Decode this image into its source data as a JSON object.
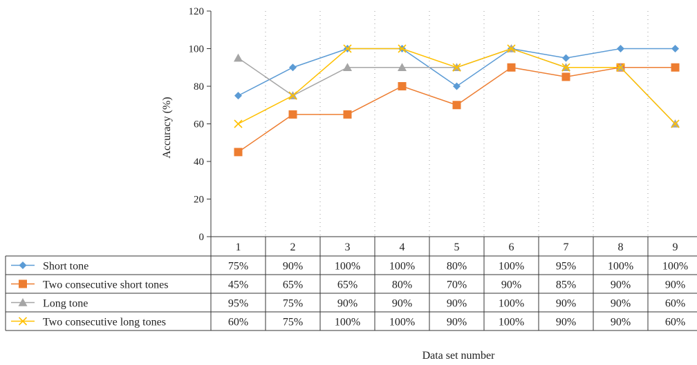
{
  "chart_data": {
    "type": "line",
    "xlabel": "Data set number",
    "ylabel": "Accuracy (%)",
    "ylim": [
      0,
      120
    ],
    "yticks": [
      "0",
      "20",
      "40",
      "60",
      "80",
      "100",
      "120"
    ],
    "categories": [
      "1",
      "2",
      "3",
      "4",
      "5",
      "6",
      "7",
      "8",
      "9"
    ],
    "grid": "vertical dotted",
    "legend": "data table below plot",
    "series": [
      {
        "name": "Short tone",
        "color": "#5b9bd5",
        "marker": "diamond",
        "values": [
          75,
          90,
          100,
          100,
          80,
          100,
          95,
          100,
          100
        ],
        "labels": [
          "75%",
          "90%",
          "100%",
          "100%",
          "80%",
          "100%",
          "95%",
          "100%",
          "100%"
        ]
      },
      {
        "name": "Two consecutive short tones",
        "color": "#ed7d31",
        "marker": "square",
        "values": [
          45,
          65,
          65,
          80,
          70,
          90,
          85,
          90,
          90
        ],
        "labels": [
          "45%",
          "65%",
          "65%",
          "80%",
          "70%",
          "90%",
          "85%",
          "90%",
          "90%"
        ]
      },
      {
        "name": "Long tone",
        "color": "#a5a5a5",
        "marker": "triangle",
        "values": [
          95,
          75,
          90,
          90,
          90,
          100,
          90,
          90,
          60
        ],
        "labels": [
          "95%",
          "75%",
          "90%",
          "90%",
          "90%",
          "100%",
          "90%",
          "90%",
          "60%"
        ]
      },
      {
        "name": "Two consecutive long tones",
        "color": "#ffc000",
        "marker": "x",
        "values": [
          60,
          75,
          100,
          100,
          90,
          100,
          90,
          90,
          60
        ],
        "labels": [
          "60%",
          "75%",
          "100%",
          "100%",
          "90%",
          "100%",
          "90%",
          "90%",
          "60%"
        ]
      }
    ]
  }
}
